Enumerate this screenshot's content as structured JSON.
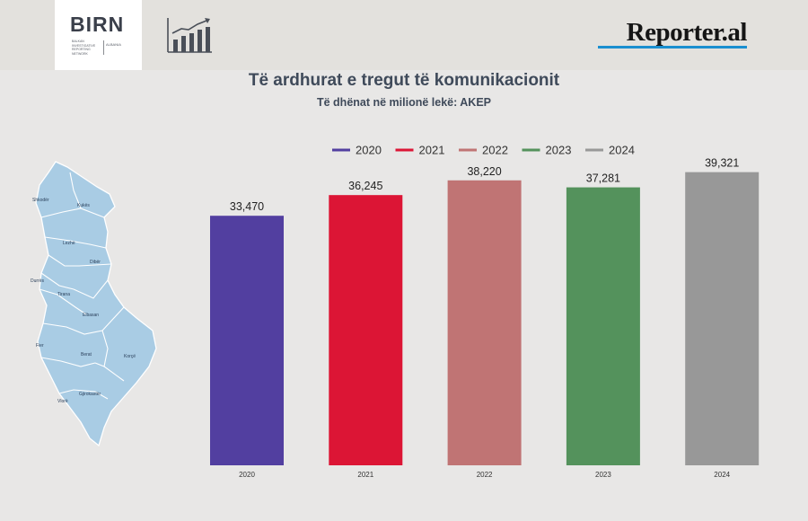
{
  "header": {
    "birn_logo_text": "BIRN",
    "birn_tagline": "Balkan Investigative Reporting Network",
    "birn_region": "Albania",
    "chart_icon": "bar-chart-trend-icon",
    "reporter_logo": "Reporter.al"
  },
  "map": {
    "icon": "albania-map-icon",
    "regions": [
      "Shkodër",
      "Kukës",
      "Lezhë",
      "Dibër",
      "Durrës",
      "Tirana",
      "Elbasan",
      "Fier",
      "Berat",
      "Korçë",
      "Gjirokastër",
      "Vlorë"
    ]
  },
  "chart_data": {
    "type": "bar",
    "title": "Të ardhurat e tregut të komunikacionit",
    "subtitle": "Të dhënat në milionë lekë: AKEP",
    "categories": [
      "2020",
      "2021",
      "2022",
      "2023",
      "2024"
    ],
    "values": [
      33470,
      36245,
      38220,
      37281,
      39321
    ],
    "value_labels": [
      "33,470",
      "36,245",
      "38,220",
      "37,281",
      "39,321"
    ],
    "colors": [
      "#523fa0",
      "#dc1535",
      "#c07474",
      "#54925c",
      "#989898"
    ],
    "legend": {
      "placement": "top",
      "entries": [
        "2020",
        "2021",
        "2022",
        "2023",
        "2024"
      ]
    },
    "ylim": [
      0,
      40000
    ],
    "grid": false,
    "xlabel": "",
    "ylabel": ""
  }
}
